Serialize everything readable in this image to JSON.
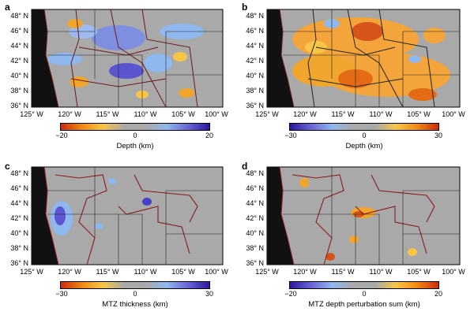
{
  "lat_labels": [
    "48° N",
    "46° N",
    "44° N",
    "42° N",
    "40° N",
    "38° N",
    "36° N"
  ],
  "lon_labels": [
    "125° W",
    "120° W",
    "115° W",
    "110° W",
    "105° W",
    "100° W"
  ],
  "panels": [
    {
      "letter": "a",
      "title": "Depth (km)",
      "ticks": [
        "−20",
        "0",
        "20"
      ],
      "colormap": [
        "#cc2a0e",
        "#f08a10",
        "#f8c646",
        "#a9a9a9",
        "#a9a9a9",
        "#8fb8ee",
        "#6a66d6",
        "#2a18a0"
      ]
    },
    {
      "letter": "b",
      "title": "Depth (km)",
      "ticks": [
        "−30",
        "0",
        "30"
      ],
      "colormap": [
        "#2a18a0",
        "#6a66d6",
        "#8fb8ee",
        "#a9a9a9",
        "#a9a9a9",
        "#f8c646",
        "#f08a10",
        "#cc2a0e"
      ]
    },
    {
      "letter": "c",
      "title": "MTZ thickness (km)",
      "ticks": [
        "−30",
        "0",
        "30"
      ],
      "colormap": [
        "#cc2a0e",
        "#f08a10",
        "#f8c646",
        "#a9a9a9",
        "#a9a9a9",
        "#8fb8ee",
        "#6a66d6",
        "#2a18a0"
      ]
    },
    {
      "letter": "d",
      "title": "MTZ depth perturbation sum (km)",
      "ticks": [
        "−20",
        "0",
        "20"
      ],
      "colormap": [
        "#2a18a0",
        "#6a66d6",
        "#8fb8ee",
        "#a9a9a9",
        "#a9a9a9",
        "#f8c646",
        "#f08a10",
        "#cc2a0e"
      ]
    }
  ]
}
